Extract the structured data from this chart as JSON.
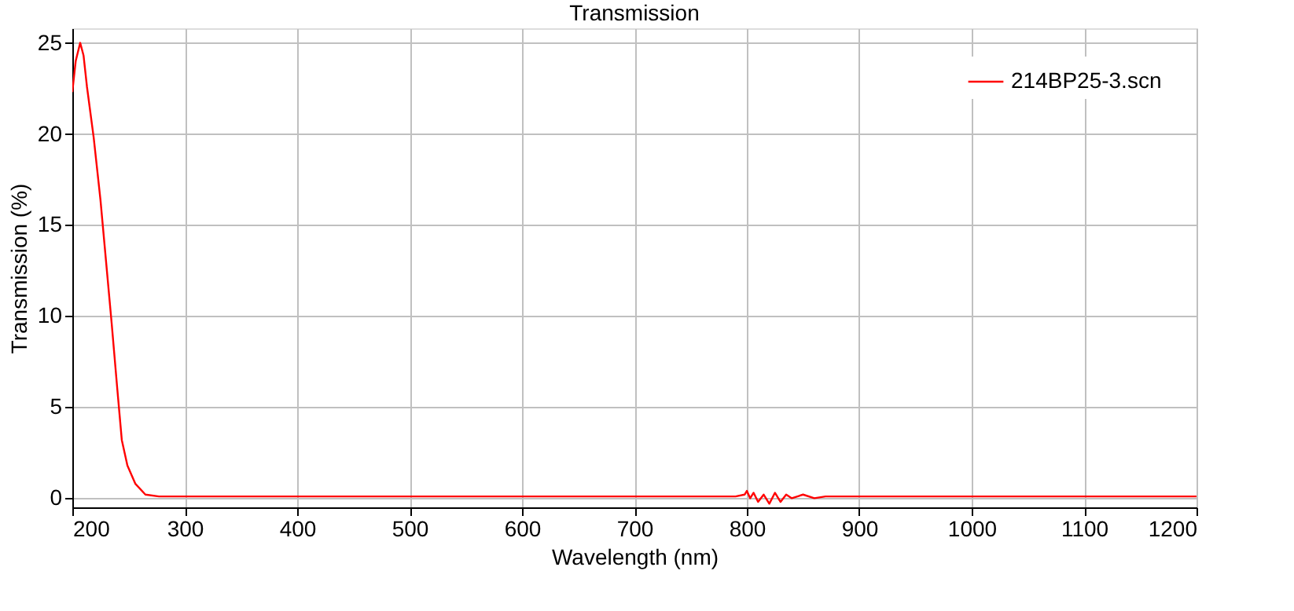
{
  "chart_data": {
    "type": "line",
    "title": "Transmission",
    "xlabel": "Wavelength (nm)",
    "ylabel": "Transmission (%)",
    "x": [
      200,
      203,
      207,
      210,
      213,
      219,
      225,
      230,
      235,
      240,
      244,
      249,
      256,
      265,
      277,
      300,
      350,
      400,
      450,
      500,
      550,
      600,
      650,
      700,
      750,
      790,
      798,
      800,
      803,
      806,
      810,
      815,
      820,
      825,
      830,
      835,
      840,
      850,
      860,
      870,
      900,
      950,
      1000,
      1050,
      1100,
      1150,
      1200
    ],
    "series": [
      {
        "name": "214BP25-3.scn",
        "color": "#ff0000",
        "values": [
          22.3,
          24.0,
          25.0,
          24.3,
          22.6,
          19.8,
          16.4,
          13.0,
          9.6,
          6.0,
          3.2,
          1.8,
          0.8,
          0.2,
          0.1,
          0.1,
          0.1,
          0.1,
          0.1,
          0.1,
          0.1,
          0.1,
          0.1,
          0.1,
          0.1,
          0.1,
          0.2,
          0.4,
          0.0,
          0.3,
          -0.2,
          0.2,
          -0.3,
          0.3,
          -0.2,
          0.2,
          0.0,
          0.2,
          0.0,
          0.1,
          0.1,
          0.1,
          0.1,
          0.1,
          0.1,
          0.1,
          0.1
        ]
      }
    ],
    "xlim": [
      200,
      1200
    ],
    "ylim": [
      -0.5,
      25.8
    ],
    "xticks": [
      200,
      300,
      400,
      500,
      600,
      700,
      800,
      900,
      1000,
      1100,
      1200
    ],
    "yticks": [
      0,
      5,
      10,
      15,
      20,
      25
    ],
    "grid": true,
    "legend": "top right",
    "marker": "none",
    "line_style": "solid"
  }
}
